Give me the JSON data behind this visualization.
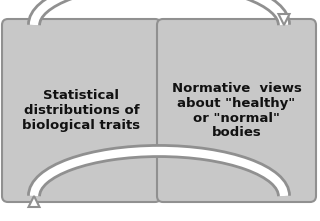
{
  "bg_color": "#ffffff",
  "box_fill": "#c8c8c8",
  "box_edge": "#909090",
  "box_edge_width": 1.5,
  "left_text": "Statistical\ndistributions of\nbiological traits",
  "right_text": "Normative  views\nabout \"healthy\"\nor \"normal\"\nbodies",
  "text_fontsize": 9.5,
  "text_color": "#111111",
  "arrow_face": "#ffffff",
  "arrow_edge": "#909090",
  "arrow_lw": 1.5,
  "fig_width": 3.2,
  "fig_height": 2.21,
  "dpi": 100
}
